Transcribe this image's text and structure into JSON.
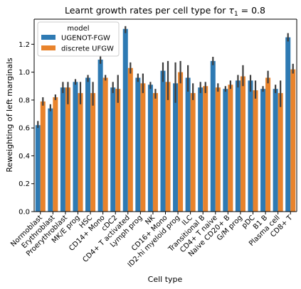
{
  "colors": {
    "ugenot": "#2e7ab3",
    "discrete": "#e8832c",
    "errorbar": "#3d3d3d",
    "axis": "#000000"
  },
  "chart_data": {
    "type": "bar",
    "title_prefix": "Learnt growth rates per cell type for ",
    "title_symbol": "τ",
    "title_subscript": "1",
    "title_suffix": " = 0.8",
    "xlabel": "Cell type",
    "ylabel": "Reweighting of left marginals",
    "ylim": [
      0,
      1.38
    ],
    "yticks": [
      "0.0",
      "0.2",
      "0.4",
      "0.6",
      "0.8",
      "1.0",
      "1.2"
    ],
    "legend": {
      "title": "model",
      "placement": "top-left"
    },
    "categories": [
      "Normoblast",
      "Erythroblast",
      "Proerythroblast",
      "MK/E prog",
      "HSC",
      "CD14+ Mono",
      "cDC2",
      "CD4+ T activated",
      "Lymph prog",
      "NK",
      "CD16+ Mono",
      "ID2-hi myeloid prog",
      "ILC",
      "Transitional B",
      "CD4+ T naive",
      "Naive CD20+ B",
      "G/M prog",
      "pDC",
      "B1 B",
      "Plasma cell",
      "CD8+ T"
    ],
    "series": [
      {
        "name": "UGENOT-FGW",
        "color": "#2e7ab3",
        "values": [
          0.62,
          0.74,
          0.89,
          0.93,
          0.96,
          1.09,
          0.89,
          1.31,
          0.96,
          0.91,
          1.01,
          0.92,
          0.96,
          0.89,
          1.08,
          0.88,
          0.94,
          0.94,
          0.88,
          0.88,
          1.25
        ],
        "err_low": [
          0.6,
          0.72,
          0.85,
          0.91,
          0.93,
          1.06,
          0.85,
          1.28,
          0.93,
          0.88,
          0.93,
          0.78,
          0.86,
          0.85,
          1.05,
          0.86,
          0.89,
          0.86,
          0.86,
          0.85,
          1.22
        ],
        "err_high": [
          0.65,
          0.77,
          0.93,
          0.95,
          0.98,
          1.12,
          0.93,
          1.33,
          0.99,
          0.93,
          1.07,
          1.07,
          1.05,
          0.93,
          1.11,
          0.9,
          0.98,
          0.98,
          0.9,
          0.91,
          1.28
        ]
      },
      {
        "name": "discrete UFGW",
        "color": "#e8832c",
        "values": [
          0.79,
          0.82,
          0.89,
          0.85,
          0.85,
          0.96,
          0.88,
          1.03,
          0.92,
          0.85,
          0.93,
          1.0,
          0.85,
          0.9,
          0.89,
          0.91,
          0.97,
          0.87,
          0.96,
          0.85,
          1.02
        ],
        "err_low": [
          0.76,
          0.8,
          0.77,
          0.77,
          0.76,
          0.94,
          0.78,
          0.99,
          0.85,
          0.81,
          0.8,
          0.92,
          0.8,
          0.85,
          0.86,
          0.88,
          0.9,
          0.81,
          0.92,
          0.75,
          0.99
        ],
        "err_high": [
          0.82,
          0.84,
          0.93,
          0.93,
          0.93,
          0.98,
          0.98,
          1.07,
          0.99,
          0.88,
          1.08,
          1.08,
          0.92,
          0.93,
          0.92,
          0.94,
          1.05,
          0.94,
          1.01,
          0.94,
          1.06
        ]
      }
    ]
  }
}
